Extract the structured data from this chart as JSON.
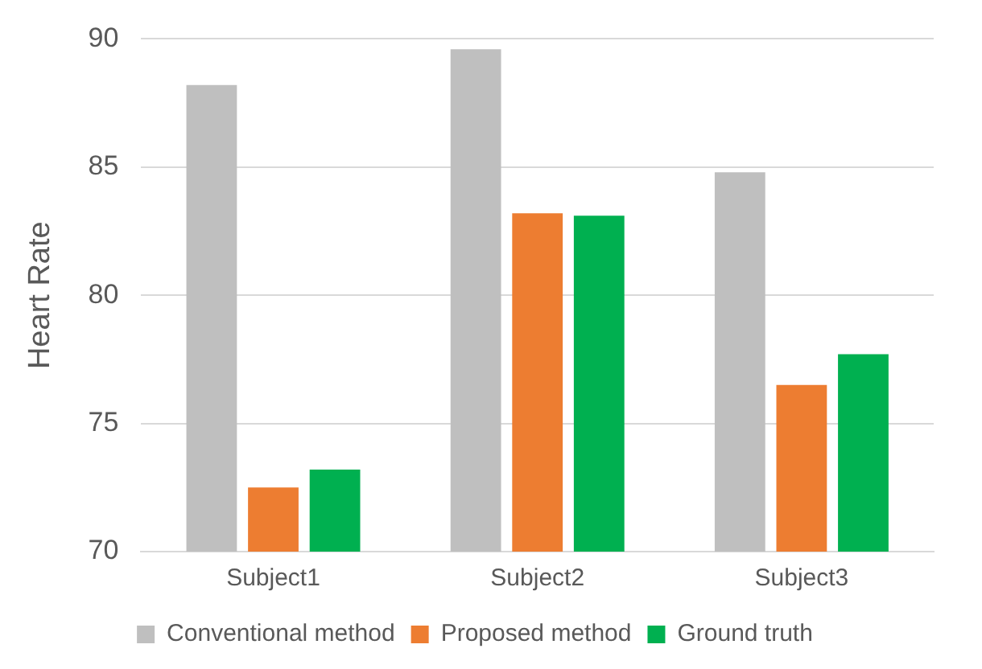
{
  "chart_data": {
    "type": "bar",
    "ylabel": "Heart Rate",
    "categories": [
      "Subject1",
      "Subject2",
      "Subject3"
    ],
    "series": [
      {
        "name": "Conventional method",
        "color": "#bfbfbf",
        "values": [
          88.2,
          89.6,
          84.8
        ]
      },
      {
        "name": "Proposed method",
        "color": "#ed7d31",
        "values": [
          72.5,
          83.2,
          76.5
        ]
      },
      {
        "name": "Ground truth",
        "color": "#00b050",
        "values": [
          73.2,
          83.1,
          77.7
        ]
      }
    ],
    "ylim": [
      70,
      90
    ],
    "yticks": [
      70,
      75,
      80,
      85,
      90
    ],
    "grid": "y",
    "legend": "bottom"
  }
}
